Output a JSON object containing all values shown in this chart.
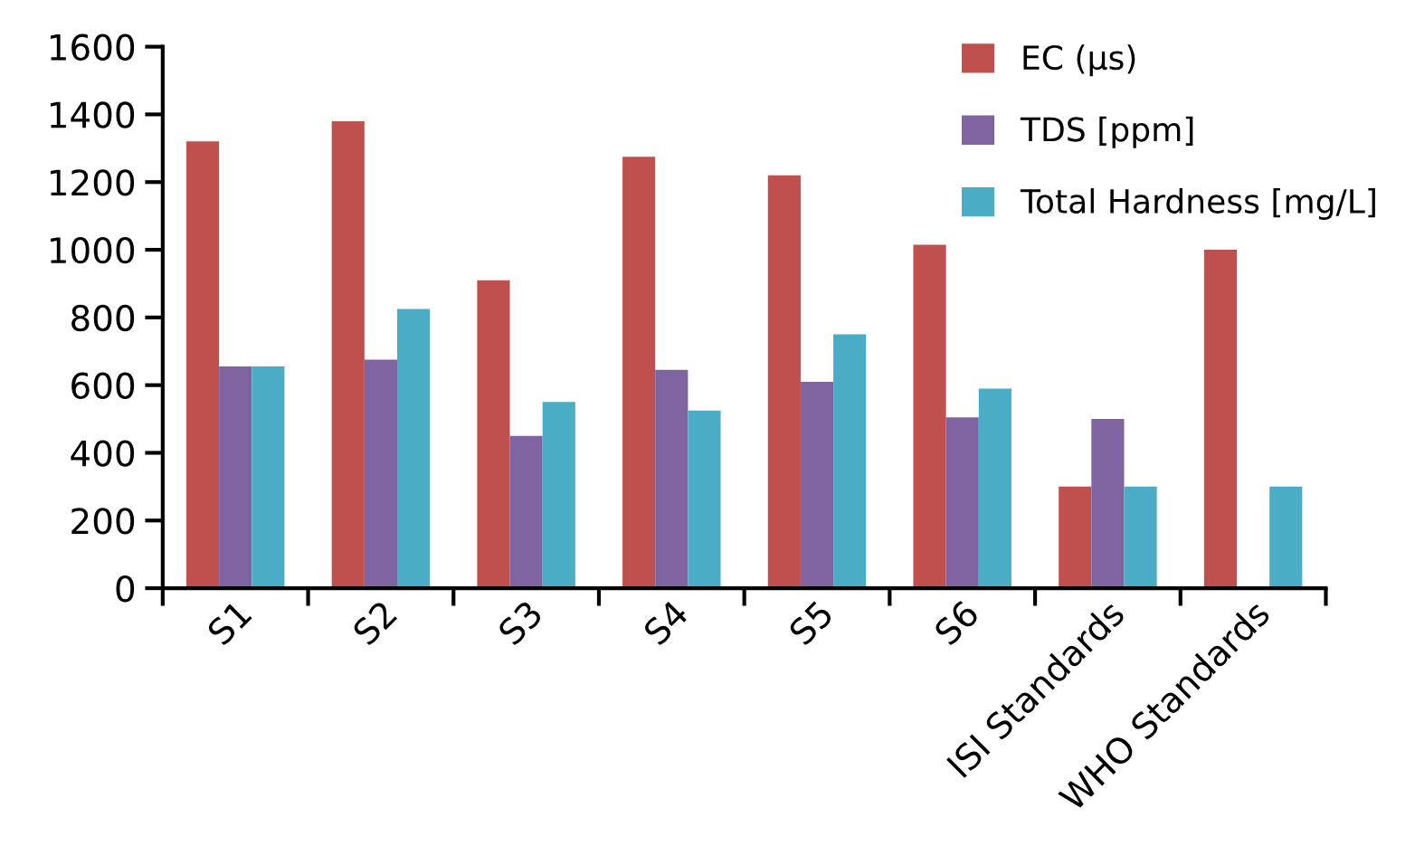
{
  "chart_data": {
    "type": "bar",
    "categories": [
      "S1",
      "S2",
      "S3",
      "S4",
      "S5",
      "S6",
      "ISI Standards",
      "WHO Standards"
    ],
    "series": [
      {
        "name": "EC (µs)",
        "color": "#c0504d",
        "values": [
          1320,
          1380,
          910,
          1275,
          1220,
          1015,
          300,
          1000
        ]
      },
      {
        "name": "TDS [ppm]",
        "color": "#8064a2",
        "values": [
          655,
          675,
          450,
          645,
          610,
          505,
          500,
          null
        ]
      },
      {
        "name": "Total Hardness [mg/L]",
        "color": "#4bacc6",
        "values": [
          655,
          825,
          550,
          525,
          750,
          590,
          300,
          300
        ]
      }
    ],
    "ylim": [
      0,
      1600
    ],
    "yticks": [
      0,
      200,
      400,
      600,
      800,
      1000,
      1200,
      1400,
      1600
    ],
    "grid": false,
    "legend": "top right"
  }
}
